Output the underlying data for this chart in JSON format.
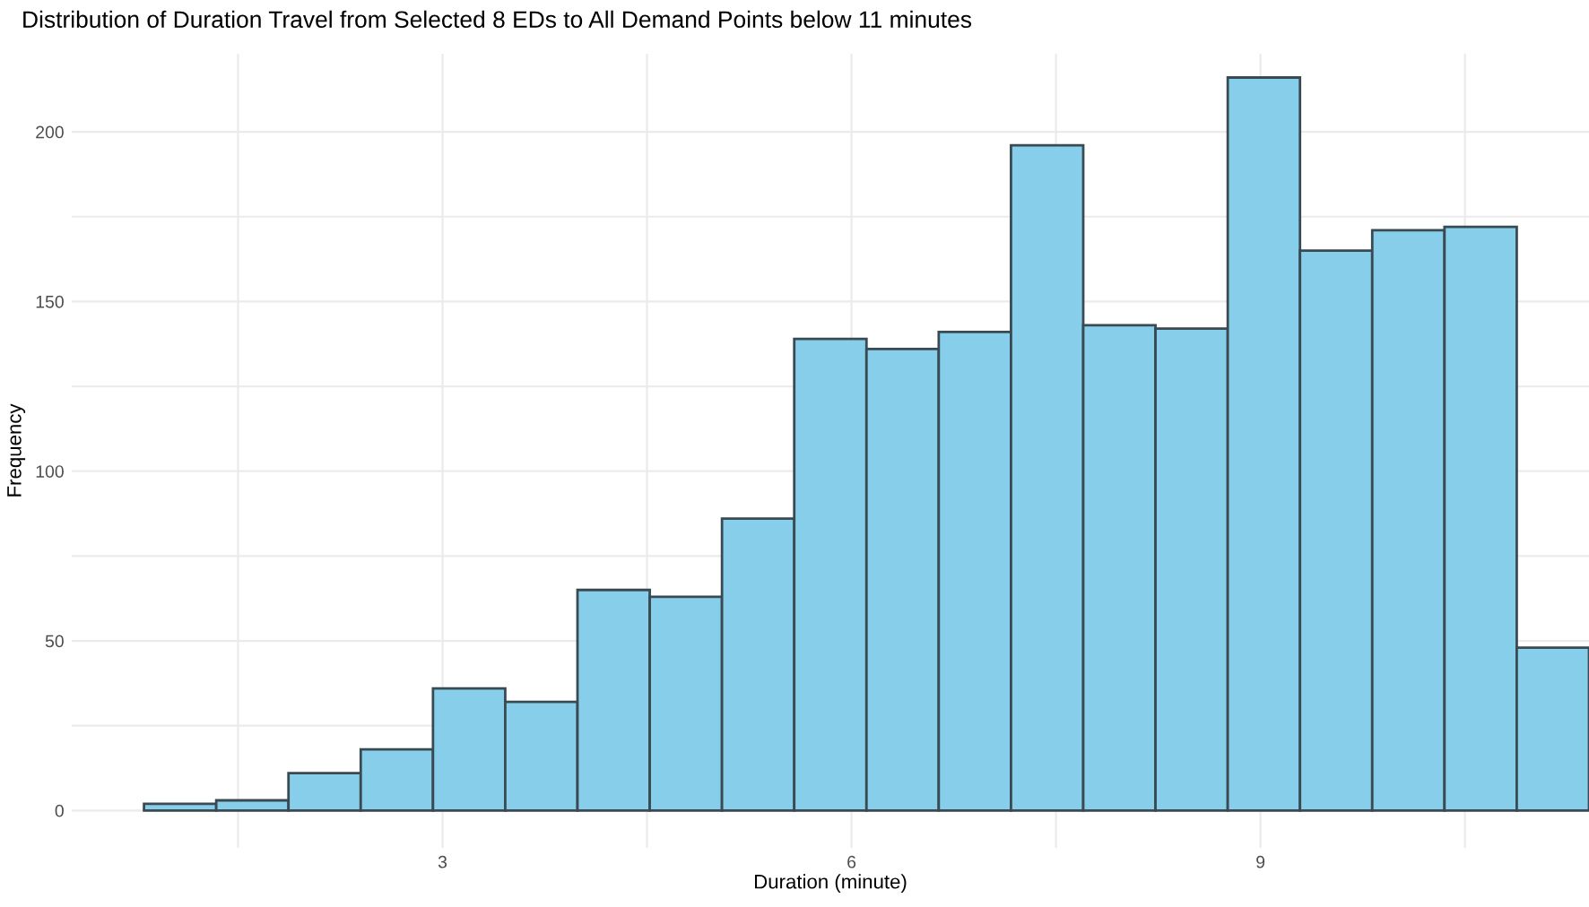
{
  "chart_data": {
    "type": "histogram",
    "title": "Distribution of Duration Travel from Selected 8 EDs to All Demand Points below 11 minutes",
    "xlabel": "Duration (minute)",
    "ylabel": "Frequency",
    "bins": [
      0.81,
      1.34,
      1.87,
      2.4,
      2.93,
      3.46,
      3.99,
      4.52,
      5.05,
      5.58,
      6.11,
      6.64,
      7.17,
      7.7,
      8.23,
      8.76,
      9.29,
      9.82,
      10.35,
      10.88,
      11.41
    ],
    "values": [
      2,
      3,
      11,
      18,
      36,
      32,
      65,
      63,
      86,
      139,
      136,
      141,
      196,
      143,
      142,
      216,
      165,
      171,
      172,
      48
    ],
    "color": "#87ceeb",
    "xlim": [
      0.28,
      11.41
    ],
    "ylim": [
      -11,
      223
    ],
    "xticks": [
      {
        "value": 1.5,
        "label": null
      },
      3,
      {
        "value": 4.5,
        "label": null
      },
      6,
      {
        "value": 7.5,
        "label": null
      },
      9,
      {
        "value": 10.5,
        "label": null
      }
    ],
    "yticks": [
      0,
      {
        "value": 25,
        "label": null
      },
      50,
      {
        "value": 75,
        "label": null
      },
      100,
      {
        "value": 125,
        "label": null
      },
      150,
      {
        "value": 175,
        "label": null
      },
      200
    ],
    "grid": true
  }
}
